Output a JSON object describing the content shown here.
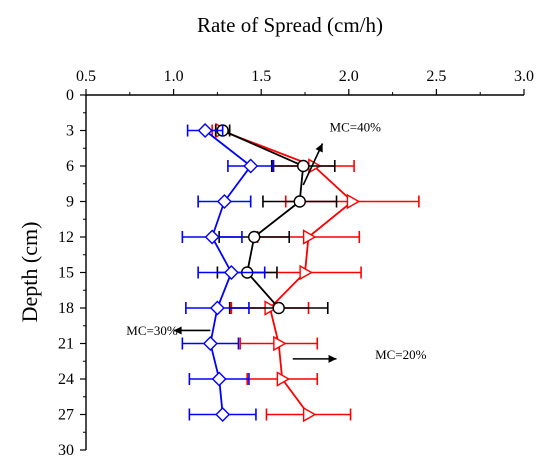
{
  "chart_data": {
    "type": "line",
    "orientation": "horizontal-values",
    "title": "Rate of Spread (cm/h)",
    "xlabel": "",
    "ylabel": "Depth (cm)",
    "xlim": [
      0.5,
      3.0
    ],
    "ylim": [
      0,
      30
    ],
    "y_inverted": true,
    "x_axis_position": "top",
    "x_ticks": [
      "0.5",
      "1.0",
      "1.5",
      "2.0",
      "2.5",
      "3.0"
    ],
    "y_ticks": [
      "0",
      "3",
      "6",
      "9",
      "12",
      "15",
      "18",
      "21",
      "24",
      "27",
      "30"
    ],
    "grid": false,
    "depth": [
      3,
      6,
      9,
      12,
      15,
      18,
      21,
      24,
      27
    ],
    "series": [
      {
        "color": "#ff0000",
        "marker": "triangle-right",
        "depth": [
          3,
          6,
          9,
          12,
          15,
          18,
          21,
          24,
          27
        ],
        "values": [
          1.27,
          1.8,
          2.02,
          1.77,
          1.75,
          1.55,
          1.6,
          1.62,
          1.77
        ],
        "error": [
          0.05,
          0.23,
          0.38,
          0.29,
          0.32,
          0.22,
          0.22,
          0.2,
          0.24
        ]
      },
      {
        "color": "#000000",
        "marker": "circle",
        "depth": [
          3,
          6,
          9,
          12,
          15,
          18
        ],
        "values": [
          1.28,
          1.74,
          1.72,
          1.46,
          1.42,
          1.6
        ],
        "error": [
          0.04,
          0.18,
          0.21,
          0.2,
          0.17,
          0.28
        ]
      },
      {
        "color": "#0000ff",
        "marker": "diamond",
        "depth": [
          3,
          6,
          9,
          12,
          15,
          18,
          21,
          24,
          27
        ],
        "values": [
          1.18,
          1.44,
          1.29,
          1.22,
          1.33,
          1.25,
          1.21,
          1.26,
          1.28
        ],
        "error": [
          0.1,
          0.13,
          0.15,
          0.17,
          0.19,
          0.18,
          0.16,
          0.17,
          0.19
        ]
      }
    ],
    "annotations": [
      {
        "text": "MC=40%",
        "depth": 3.1,
        "value": 1.89
      },
      {
        "text": "MC=30%",
        "depth": 20.3,
        "value": 0.73
      },
      {
        "text": "MC=20%",
        "depth": 22.3,
        "value": 2.15
      }
    ]
  }
}
